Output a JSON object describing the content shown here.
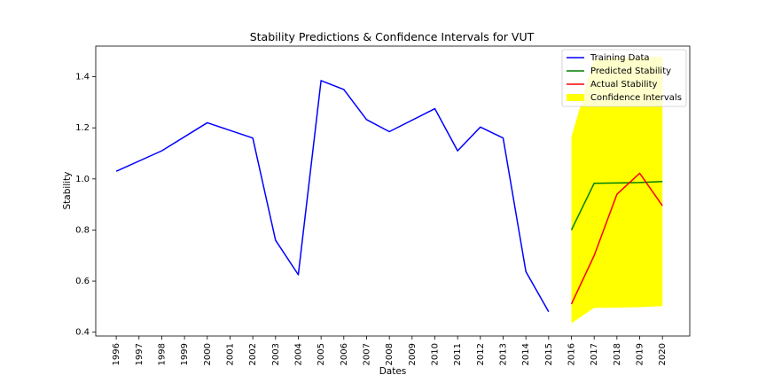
{
  "chart_data": {
    "type": "line",
    "title": "Stability Predictions & Confidence Intervals for VUT",
    "xlabel": "Dates",
    "ylabel": "Stability",
    "x_ticks": [
      "1996",
      "1997",
      "1998",
      "1999",
      "2000",
      "2001",
      "2002",
      "2003",
      "2004",
      "2005",
      "2006",
      "2007",
      "2008",
      "2009",
      "2010",
      "2011",
      "2012",
      "2013",
      "2014",
      "2015",
      "2016",
      "2017",
      "2018",
      "2019",
      "2020"
    ],
    "y_ticks": [
      "0.4",
      "0.6",
      "0.8",
      "1.0",
      "1.2",
      "1.4"
    ],
    "xlim": [
      1995.1,
      2021.2
    ],
    "ylim": [
      0.385,
      1.52
    ],
    "grid": false,
    "legend_position": "top-right",
    "series": [
      {
        "name": "Training Data",
        "color": "#0000ff",
        "x": [
          1996,
          1998,
          2000,
          2002,
          2003,
          2004,
          2005,
          2006,
          2007,
          2008,
          2010,
          2011,
          2012,
          2013,
          2014,
          2015
        ],
        "y": [
          1.03,
          1.11,
          1.22,
          1.16,
          0.76,
          0.625,
          1.385,
          1.35,
          1.232,
          1.185,
          1.275,
          1.11,
          1.203,
          1.16,
          0.637,
          0.48
        ]
      },
      {
        "name": "Predicted Stability",
        "color": "#008000",
        "x": [
          2016,
          2017,
          2018,
          2019,
          2020
        ],
        "y": [
          0.8,
          0.983,
          0.984,
          0.986,
          0.99
        ]
      },
      {
        "name": "Actual Stability",
        "color": "#ff0000",
        "x": [
          2016,
          2017,
          2018,
          2019,
          2020
        ],
        "y": [
          0.51,
          0.7,
          0.94,
          1.022,
          0.895
        ]
      }
    ],
    "confidence_interval": {
      "name": "Confidence Intervals",
      "color": "#ffff00",
      "x": [
        2016,
        2017,
        2018,
        2019,
        2020
      ],
      "lower": [
        0.435,
        0.495,
        0.496,
        0.498,
        0.502
      ],
      "upper": [
        1.165,
        1.47,
        1.475,
        1.476,
        1.478
      ]
    }
  }
}
